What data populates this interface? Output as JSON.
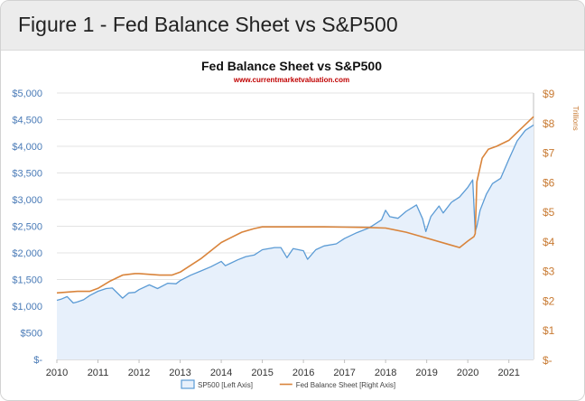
{
  "header": {
    "title": "Figure 1 - Fed Balance Sheet vs S&P500"
  },
  "chart_data": {
    "type": "area",
    "title": "Fed Balance Sheet vs S&P500",
    "subtitle": "www.currentmarketvaluation.com",
    "xlabel": "",
    "ylabel_right": "Trillions",
    "x_ticks": [
      "2010",
      "2011",
      "2012",
      "2013",
      "2014",
      "2015",
      "2016",
      "2017",
      "2018",
      "2019",
      "2020",
      "2021"
    ],
    "y_left_ticks": [
      "$-",
      "$500",
      "$1,000",
      "$1,500",
      "$2,000",
      "$2,500",
      "$3,000",
      "$3,500",
      "$4,000",
      "$4,500",
      "$5,000"
    ],
    "y_right_ticks": [
      "$-",
      "$1",
      "$2",
      "$3",
      "$4",
      "$5",
      "$6",
      "$7",
      "$8",
      "$9"
    ],
    "y_left_range": [
      0,
      5000
    ],
    "y_right_range": [
      0,
      9
    ],
    "x_range": [
      2010,
      2021.6
    ],
    "grid": true,
    "legend_position": "bottom",
    "series": [
      {
        "name": "SP500 [Left Axis]",
        "axis": "left",
        "color": "#5b9bd5",
        "fill": "#e7f0fb",
        "x": [
          2010.0,
          2010.1,
          2010.25,
          2010.4,
          2010.5,
          2010.65,
          2010.8,
          2011.0,
          2011.2,
          2011.35,
          2011.6,
          2011.75,
          2011.9,
          2012.0,
          2012.25,
          2012.45,
          2012.7,
          2012.9,
          2013.0,
          2013.25,
          2013.5,
          2013.75,
          2014.0,
          2014.1,
          2014.4,
          2014.6,
          2014.8,
          2015.0,
          2015.3,
          2015.45,
          2015.6,
          2015.75,
          2016.0,
          2016.1,
          2016.3,
          2016.5,
          2016.8,
          2017.0,
          2017.3,
          2017.6,
          2017.9,
          2018.0,
          2018.1,
          2018.3,
          2018.5,
          2018.75,
          2018.9,
          2018.98,
          2019.1,
          2019.3,
          2019.4,
          2019.6,
          2019.8,
          2020.0,
          2020.12,
          2020.18,
          2020.22,
          2020.3,
          2020.45,
          2020.6,
          2020.8,
          2021.0,
          2021.2,
          2021.4,
          2021.6
        ],
        "values": [
          1110,
          1130,
          1180,
          1060,
          1080,
          1120,
          1200,
          1280,
          1330,
          1340,
          1150,
          1250,
          1260,
          1310,
          1400,
          1330,
          1430,
          1420,
          1480,
          1580,
          1660,
          1740,
          1840,
          1760,
          1870,
          1930,
          1960,
          2060,
          2100,
          2100,
          1910,
          2080,
          2040,
          1880,
          2060,
          2130,
          2170,
          2270,
          2380,
          2470,
          2620,
          2800,
          2680,
          2650,
          2780,
          2900,
          2640,
          2400,
          2680,
          2880,
          2750,
          2950,
          3050,
          3230,
          3370,
          2400,
          2500,
          2800,
          3100,
          3300,
          3400,
          3760,
          4100,
          4300,
          4400
        ]
      },
      {
        "name": "Fed Balance Sheet [Right Axis]",
        "axis": "right",
        "color": "#d9843b",
        "x": [
          2010.0,
          2010.5,
          2010.8,
          2011.0,
          2011.3,
          2011.6,
          2011.9,
          2012.0,
          2012.5,
          2012.8,
          2013.0,
          2013.5,
          2014.0,
          2014.5,
          2014.8,
          2015.0,
          2015.5,
          2016.0,
          2016.5,
          2017.0,
          2017.5,
          2018.0,
          2018.5,
          2019.0,
          2019.5,
          2019.8,
          2020.0,
          2020.15,
          2020.18,
          2020.22,
          2020.35,
          2020.5,
          2020.7,
          2021.0,
          2021.3,
          2021.6
        ],
        "values": [
          2.25,
          2.3,
          2.3,
          2.4,
          2.65,
          2.85,
          2.9,
          2.9,
          2.85,
          2.85,
          2.95,
          3.4,
          3.95,
          4.3,
          4.42,
          4.48,
          4.48,
          4.48,
          4.48,
          4.47,
          4.46,
          4.44,
          4.3,
          4.1,
          3.9,
          3.78,
          4.0,
          4.15,
          4.25,
          6.0,
          6.8,
          7.1,
          7.2,
          7.4,
          7.8,
          8.2
        ]
      }
    ]
  }
}
